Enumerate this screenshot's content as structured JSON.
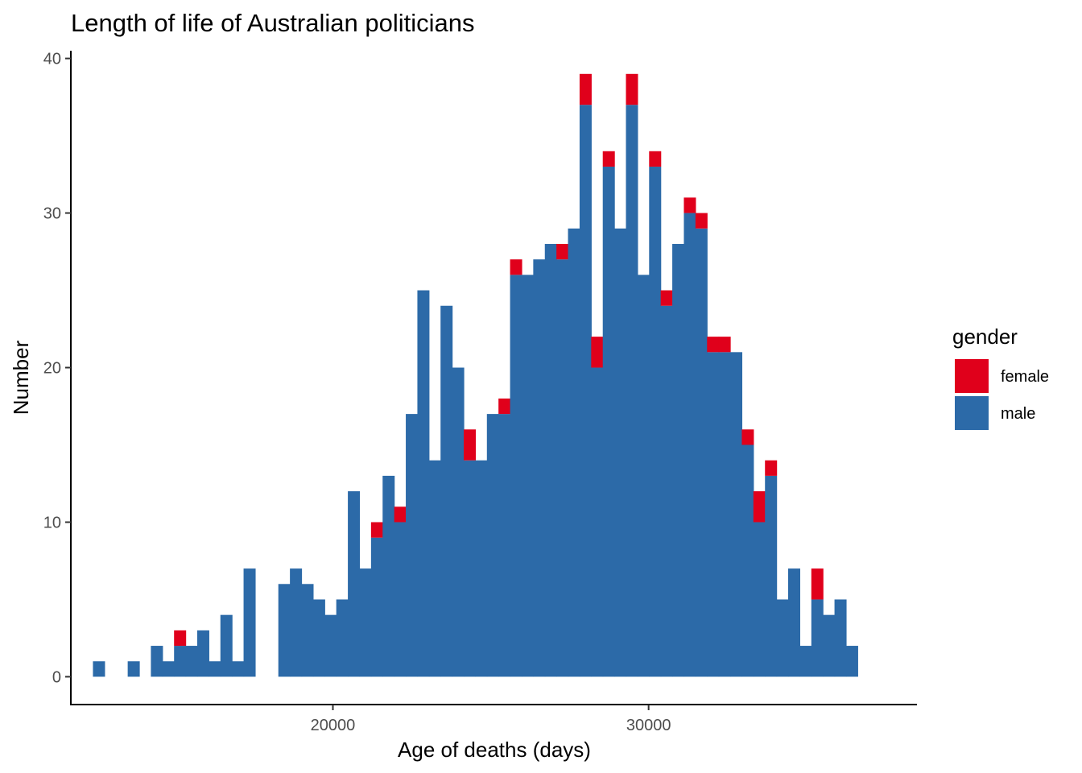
{
  "chart_data": {
    "type": "bar",
    "subtype": "stacked-histogram",
    "title": "Length of life of Australian politicians",
    "xlabel": "Age of deaths (days)",
    "ylabel": "Number",
    "xlim": [
      11700,
      38500
    ],
    "ylim": [
      -1.8,
      40.5
    ],
    "x_ticks": [
      20000,
      30000
    ],
    "y_ticks": [
      0,
      10,
      20,
      30,
      40
    ],
    "x_tick_labels": [
      "20000",
      "30000"
    ],
    "y_tick_labels": [
      "0",
      "10",
      "20",
      "30",
      "40"
    ],
    "bin_start": 12400,
    "bin_width": 367,
    "grid": false,
    "legend": {
      "title": "gender",
      "position": "right"
    },
    "series": [
      {
        "name": "male",
        "color": "#2c6aa8",
        "values": [
          1,
          0,
          0,
          1,
          0,
          2,
          1,
          2,
          2,
          3,
          1,
          4,
          1,
          7,
          0,
          0,
          6,
          7,
          6,
          5,
          4,
          5,
          12,
          7,
          9,
          13,
          10,
          17,
          25,
          14,
          24,
          20,
          14,
          14,
          17,
          17,
          26,
          26,
          27,
          28,
          27,
          29,
          37,
          20,
          33,
          29,
          37,
          26,
          33,
          24,
          28,
          30,
          29,
          21,
          21,
          21,
          15,
          10,
          13,
          5,
          7,
          2,
          5,
          4,
          5,
          2
        ]
      },
      {
        "name": "female",
        "color": "#e0001b",
        "values": [
          0,
          0,
          0,
          0,
          0,
          0,
          0,
          1,
          0,
          0,
          0,
          0,
          0,
          0,
          0,
          0,
          0,
          0,
          0,
          0,
          0,
          0,
          0,
          0,
          1,
          0,
          1,
          0,
          0,
          0,
          0,
          0,
          2,
          0,
          0,
          1,
          1,
          0,
          0,
          0,
          1,
          0,
          2,
          2,
          1,
          0,
          2,
          0,
          1,
          1,
          0,
          1,
          1,
          1,
          1,
          0,
          1,
          2,
          1,
          0,
          0,
          0,
          2,
          0,
          0,
          0
        ]
      }
    ]
  }
}
